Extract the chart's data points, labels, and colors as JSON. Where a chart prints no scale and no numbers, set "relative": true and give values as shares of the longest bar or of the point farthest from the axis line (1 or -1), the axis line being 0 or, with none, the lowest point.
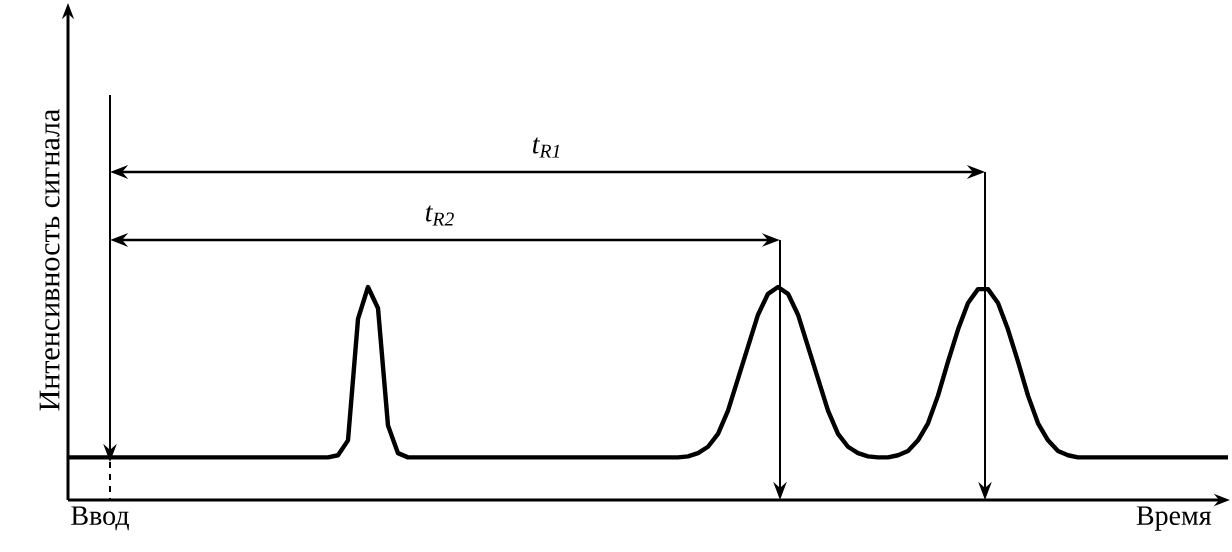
{
  "chart_data": {
    "type": "line",
    "relative": true,
    "xlabel": "Время",
    "ylabel": "Интенсивность сигнала",
    "annotations": [
      "t$_{R1}$",
      "t$_{R2}$",
      "Ввод"
    ],
    "categories": [
      null,
      null,
      null,
      null,
      null,
      null,
      null,
      null,
      null,
      null,
      null,
      null,
      null,
      null,
      null,
      null,
      null,
      null,
      null,
      null,
      null,
      null,
      null,
      null,
      null,
      null,
      null,
      null,
      null,
      null,
      null,
      null,
      null,
      null,
      null,
      null,
      null,
      null,
      null,
      null,
      null,
      null,
      null,
      null,
      null,
      null,
      null,
      null,
      null,
      null,
      null,
      null,
      null,
      null,
      null,
      null,
      null,
      null,
      null,
      null,
      null,
      null,
      null,
      null,
      null,
      null,
      null,
      null,
      null,
      null,
      null,
      null,
      null,
      null,
      null,
      null,
      null,
      null,
      null,
      null,
      null,
      null,
      null,
      null,
      null,
      null,
      null,
      null,
      null,
      null,
      null,
      null,
      null,
      null,
      null,
      null,
      null,
      null,
      null,
      null,
      null,
      null,
      null,
      null,
      null,
      null,
      null,
      null,
      null,
      null,
      null,
      null,
      null,
      null,
      null,
      null,
      null
    ],
    "series": [
      {
        "color": "#000000",
        "line_style": "solid",
        "marker": "none",
        "values": [
          0.2,
          0.2,
          0.2,
          0.2,
          0.2,
          0.2,
          0.2,
          0.2,
          0.2,
          0.2,
          0.2,
          0.2,
          0.2,
          0.2,
          0.2,
          0.2,
          0.2,
          0.2,
          0.2,
          0.2,
          0.2,
          0.2,
          0.2,
          0.2,
          0.2,
          0.2,
          0.2,
          0.21,
          0.28,
          0.85,
          1.0,
          0.9,
          0.35,
          0.22,
          0.2,
          0.2,
          0.2,
          0.2,
          0.2,
          0.2,
          0.2,
          0.2,
          0.2,
          0.2,
          0.2,
          0.2,
          0.2,
          0.2,
          0.2,
          0.2,
          0.2,
          0.2,
          0.2,
          0.2,
          0.2,
          0.2,
          0.2,
          0.2,
          0.2,
          0.2,
          0.2,
          0.2,
          0.205,
          0.22,
          0.25,
          0.31,
          0.42,
          0.57,
          0.72,
          0.87,
          0.968,
          1.0,
          0.968,
          0.87,
          0.72,
          0.57,
          0.42,
          0.31,
          0.25,
          0.22,
          0.205,
          0.2,
          0.2,
          0.21,
          0.23,
          0.28,
          0.36,
          0.49,
          0.65,
          0.8,
          0.925,
          0.99,
          0.99,
          0.925,
          0.8,
          0.65,
          0.49,
          0.36,
          0.28,
          0.23,
          0.21,
          0.2,
          0.2,
          0.2,
          0.2,
          0.2,
          0.2,
          0.2,
          0.2,
          0.2,
          0.2,
          0.2,
          0.2,
          0.2,
          0.2,
          0.2,
          0.2
        ]
      }
    ]
  }
}
